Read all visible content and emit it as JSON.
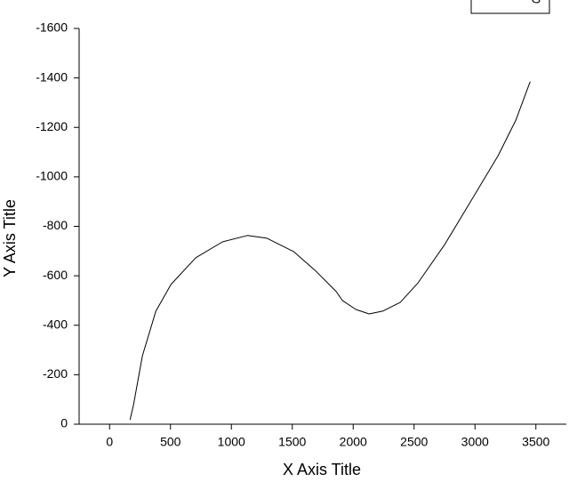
{
  "chart_data": {
    "type": "line",
    "x_label": "X Axis Title",
    "y_label": "Y Axis Title",
    "x": [
      168,
      197,
      270,
      380,
      504,
      708,
      927,
      1131,
      1292,
      1511,
      1693,
      1861,
      1912,
      2022,
      2131,
      2241,
      2387,
      2533,
      2752,
      2971,
      3190,
      3336,
      3453
    ],
    "series": [
      {
        "name": "G",
        "color": "#000000",
        "values": [
          -18,
          -79,
          -277,
          -457,
          -565,
          -673,
          -737,
          -763,
          -752,
          -698,
          -619,
          -536,
          -500,
          -464,
          -446,
          -457,
          -493,
          -572,
          -727,
          -906,
          -1086,
          -1230,
          -1385
        ]
      }
    ],
    "xlim": [
      -250,
      3750
    ],
    "xticks": [
      0,
      500,
      1000,
      1500,
      2000,
      2500,
      3000,
      3500
    ],
    "ylim": [
      0,
      -1600
    ],
    "yticks": [
      0,
      -200,
      -400,
      -600,
      -800,
      -1000,
      -1200,
      -1400,
      -1600
    ],
    "legend": "top-right"
  }
}
